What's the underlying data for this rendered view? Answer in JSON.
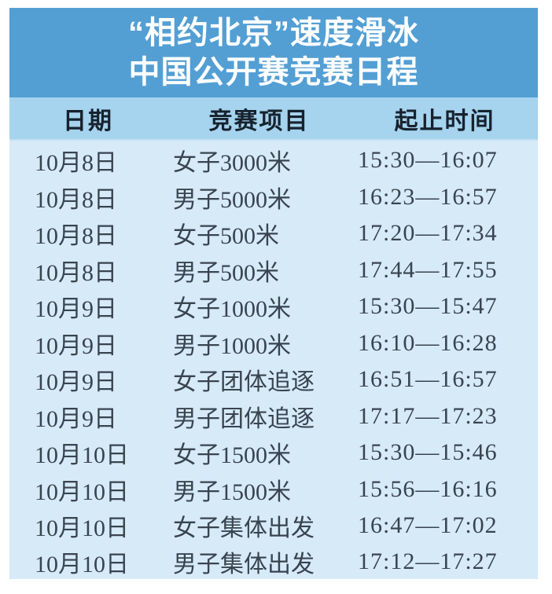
{
  "title": {
    "line1": "“相约北京”速度滑冰",
    "line2": "中国公开赛竞赛日程"
  },
  "table": {
    "headers": [
      "日期",
      "竞赛项目",
      "起止时间"
    ],
    "rows": [
      {
        "date": "10月8日",
        "event": "女子3000米",
        "time": "15:30—16:07"
      },
      {
        "date": "10月8日",
        "event": "男子5000米",
        "time": "16:23—16:57"
      },
      {
        "date": "10月8日",
        "event": "女子500米",
        "time": "17:20—17:34"
      },
      {
        "date": "10月8日",
        "event": "男子500米",
        "time": "17:44—17:55"
      },
      {
        "date": "10月9日",
        "event": "女子1000米",
        "time": "15:30—15:47"
      },
      {
        "date": "10月9日",
        "event": "男子1000米",
        "time": "16:10—16:28"
      },
      {
        "date": "10月9日",
        "event": "女子团体追逐",
        "time": "16:51—16:57"
      },
      {
        "date": "10月9日",
        "event": "男子团体追逐",
        "time": "17:17—17:23"
      },
      {
        "date": "10月10日",
        "event": "女子1500米",
        "time": "15:30—15:46"
      },
      {
        "date": "10月10日",
        "event": "男子1500米",
        "time": "15:56—16:16"
      },
      {
        "date": "10月10日",
        "event": "女子集体出发",
        "time": "16:47—17:02"
      },
      {
        "date": "10月10日",
        "event": "男子集体出发",
        "time": "17:12—17:27"
      }
    ]
  },
  "colors": {
    "title_band": "#539fd4",
    "header_band": "#a6d3ee",
    "body_band": "#d6eaf8",
    "title_text": "#ffffff",
    "header_text": "#16222e",
    "body_text": "#39444f"
  }
}
